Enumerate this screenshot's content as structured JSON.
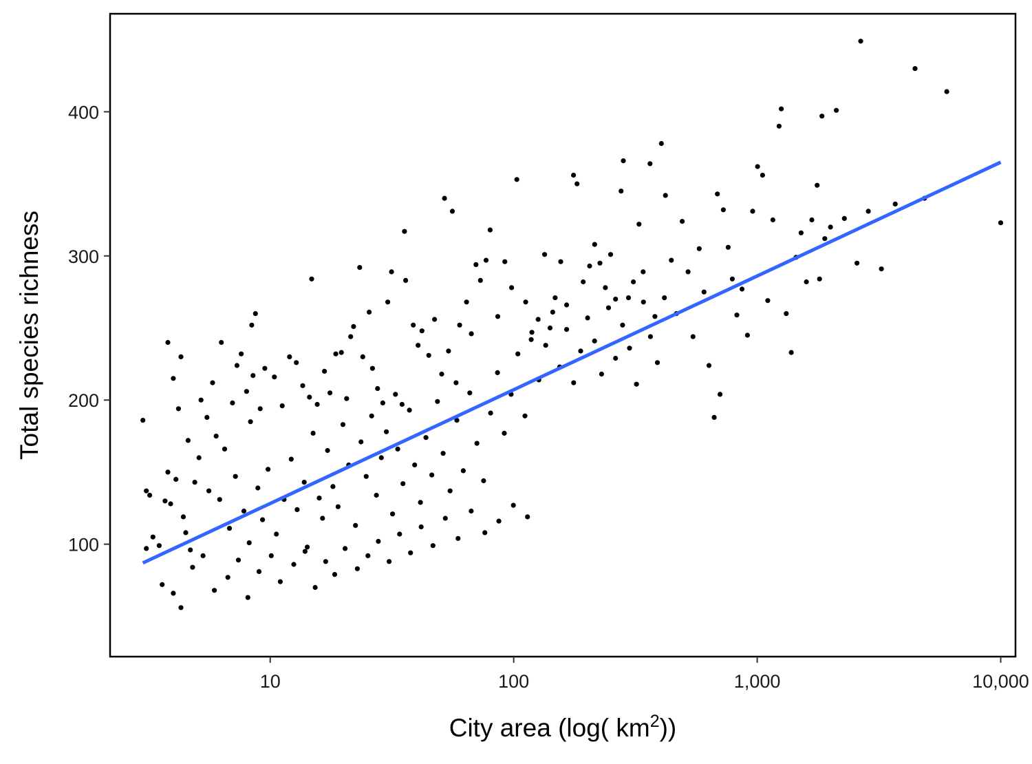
{
  "chart_data": {
    "type": "scatter",
    "xlabel": "City area (log( km",
    "xlabel_sup": "2",
    "xlabel_end": "))",
    "ylabel": "Total species richness",
    "x_scale": "log10",
    "xlim": [
      2.2,
      11500
    ],
    "ylim": [
      22,
      468
    ],
    "x_ticks": [
      10,
      100,
      1000,
      10000
    ],
    "x_tick_labels": [
      "10",
      "100",
      "1,000",
      "10,000"
    ],
    "y_ticks": [
      100,
      200,
      300,
      400
    ],
    "y_tick_labels": [
      "100",
      "200",
      "300",
      "400"
    ],
    "grid": false,
    "legend": "none",
    "trend_line": {
      "x": [
        3,
        10000
      ],
      "y": [
        87,
        365
      ],
      "color": "#3366ff"
    },
    "point_color": "#000000",
    "points": [
      [
        3.0,
        186
      ],
      [
        3.1,
        137
      ],
      [
        3.2,
        134
      ],
      [
        3.1,
        97
      ],
      [
        3.8,
        240
      ],
      [
        4.0,
        215
      ],
      [
        4.3,
        230
      ],
      [
        4.2,
        194
      ],
      [
        3.8,
        150
      ],
      [
        4.1,
        145
      ],
      [
        4.0,
        66
      ],
      [
        4.3,
        56
      ],
      [
        4.5,
        108
      ],
      [
        3.7,
        130
      ],
      [
        4.6,
        172
      ],
      [
        4.9,
        143
      ],
      [
        5.2,
        200
      ],
      [
        5.5,
        188
      ],
      [
        5.1,
        160
      ],
      [
        5.8,
        212
      ],
      [
        6.0,
        175
      ],
      [
        6.5,
        166
      ],
      [
        7.0,
        198
      ],
      [
        7.6,
        232
      ],
      [
        7.3,
        224
      ],
      [
        8.0,
        206
      ],
      [
        8.5,
        217
      ],
      [
        8.3,
        185
      ],
      [
        8.7,
        260
      ],
      [
        9.1,
        194
      ],
      [
        9.5,
        222
      ],
      [
        10.4,
        216
      ],
      [
        11.2,
        196
      ],
      [
        12.0,
        230
      ],
      [
        12.8,
        226
      ],
      [
        13.6,
        210
      ],
      [
        14.5,
        202
      ],
      [
        14.8,
        284
      ],
      [
        15.6,
        197
      ],
      [
        16.7,
        220
      ],
      [
        17.6,
        205
      ],
      [
        18.6,
        232
      ],
      [
        19.6,
        233
      ],
      [
        20.6,
        201
      ],
      [
        21.4,
        244
      ],
      [
        22.0,
        251
      ],
      [
        23.3,
        292
      ],
      [
        24.0,
        230
      ],
      [
        25.5,
        261
      ],
      [
        26.3,
        222
      ],
      [
        27.6,
        208
      ],
      [
        29.0,
        198
      ],
      [
        30.4,
        268
      ],
      [
        31.5,
        289
      ],
      [
        32.7,
        204
      ],
      [
        34.8,
        197
      ],
      [
        35.6,
        317
      ],
      [
        36.0,
        283
      ],
      [
        38.7,
        252
      ],
      [
        40.5,
        238
      ],
      [
        42.0,
        248
      ],
      [
        44.8,
        231
      ],
      [
        47.3,
        256
      ],
      [
        50.6,
        218
      ],
      [
        52.0,
        340
      ],
      [
        54.0,
        234
      ],
      [
        56.0,
        331
      ],
      [
        58.0,
        212
      ],
      [
        60.0,
        252
      ],
      [
        64.0,
        268
      ],
      [
        67.0,
        246
      ],
      [
        70.0,
        294
      ],
      [
        73.0,
        283
      ],
      [
        77.0,
        297
      ],
      [
        80.0,
        318
      ],
      [
        86.0,
        258
      ],
      [
        92.0,
        296
      ],
      [
        98.0,
        278
      ],
      [
        103.0,
        353
      ],
      [
        112.0,
        268
      ],
      [
        118.0,
        242
      ],
      [
        126.0,
        256
      ],
      [
        134.0,
        301
      ],
      [
        141.0,
        250
      ],
      [
        148.0,
        271
      ],
      [
        156.0,
        296
      ],
      [
        165.0,
        266
      ],
      [
        176.0,
        356
      ],
      [
        182.0,
        350
      ],
      [
        193.0,
        282
      ],
      [
        205.0,
        293
      ],
      [
        215.0,
        308
      ],
      [
        226.0,
        295
      ],
      [
        238.0,
        278
      ],
      [
        250.0,
        301
      ],
      [
        262.0,
        270
      ],
      [
        276.0,
        345
      ],
      [
        282.0,
        366
      ],
      [
        296.0,
        271
      ],
      [
        310.0,
        282
      ],
      [
        327.0,
        322
      ],
      [
        340.0,
        289
      ],
      [
        363.0,
        364
      ],
      [
        380.0,
        258
      ],
      [
        404.0,
        378
      ],
      [
        420.0,
        342
      ],
      [
        444.0,
        297
      ],
      [
        466.0,
        260
      ],
      [
        492.0,
        324
      ],
      [
        520.0,
        289
      ],
      [
        545.0,
        244
      ],
      [
        578.0,
        305
      ],
      [
        605.0,
        275
      ],
      [
        634.0,
        224
      ],
      [
        666.0,
        188
      ],
      [
        686.0,
        343
      ],
      [
        704.0,
        204
      ],
      [
        726.0,
        332
      ],
      [
        760.0,
        306
      ],
      [
        790.0,
        284
      ],
      [
        825.0,
        259
      ],
      [
        866.0,
        277
      ],
      [
        912.0,
        245
      ],
      [
        958.0,
        331
      ],
      [
        1003.0,
        362
      ],
      [
        1052.0,
        356
      ],
      [
        1105.0,
        269
      ],
      [
        1160.0,
        325
      ],
      [
        1230.0,
        390
      ],
      [
        1256.0,
        402
      ],
      [
        1316.0,
        260
      ],
      [
        1380.0,
        233
      ],
      [
        1444.0,
        299
      ],
      [
        1515.0,
        316
      ],
      [
        1592.0,
        282
      ],
      [
        1676.0,
        325
      ],
      [
        1762.0,
        349
      ],
      [
        1803.0,
        284
      ],
      [
        1845.0,
        397
      ],
      [
        1894.0,
        312
      ],
      [
        2000.0,
        320
      ],
      [
        2113.0,
        401
      ],
      [
        2280.0,
        326
      ],
      [
        2568.0,
        295
      ],
      [
        2660.0,
        449
      ],
      [
        2860.0,
        331
      ],
      [
        3236.0,
        291
      ],
      [
        3687.0,
        336
      ],
      [
        4448.0,
        430
      ],
      [
        4865.0,
        340
      ],
      [
        6005.0,
        414
      ],
      [
        9998.0,
        323
      ],
      [
        3.3,
        105
      ],
      [
        3.5,
        99
      ],
      [
        3.9,
        128
      ],
      [
        4.4,
        119
      ],
      [
        4.7,
        96
      ],
      [
        5.3,
        92
      ],
      [
        5.6,
        137
      ],
      [
        6.2,
        131
      ],
      [
        6.8,
        111
      ],
      [
        7.2,
        147
      ],
      [
        7.8,
        123
      ],
      [
        8.2,
        101
      ],
      [
        8.9,
        139
      ],
      [
        9.3,
        117
      ],
      [
        9.8,
        152
      ],
      [
        10.6,
        107
      ],
      [
        11.4,
        131
      ],
      [
        12.2,
        159
      ],
      [
        12.9,
        124
      ],
      [
        13.8,
        143
      ],
      [
        14.2,
        98
      ],
      [
        15.0,
        177
      ],
      [
        15.9,
        132
      ],
      [
        16.4,
        118
      ],
      [
        17.2,
        165
      ],
      [
        18.1,
        140
      ],
      [
        19.0,
        126
      ],
      [
        19.9,
        183
      ],
      [
        21.0,
        155
      ],
      [
        22.4,
        113
      ],
      [
        23.6,
        171
      ],
      [
        24.8,
        147
      ],
      [
        26.1,
        189
      ],
      [
        27.3,
        134
      ],
      [
        28.6,
        160
      ],
      [
        30.0,
        178
      ],
      [
        31.8,
        121
      ],
      [
        33.4,
        166
      ],
      [
        35.1,
        142
      ],
      [
        37.3,
        193
      ],
      [
        39.2,
        155
      ],
      [
        41.4,
        129
      ],
      [
        43.6,
        174
      ],
      [
        46.1,
        148
      ],
      [
        48.6,
        199
      ],
      [
        51.3,
        163
      ],
      [
        54.8,
        137
      ],
      [
        58.4,
        186
      ],
      [
        62.1,
        151
      ],
      [
        66.0,
        205
      ],
      [
        70.6,
        170
      ],
      [
        75.2,
        144
      ],
      [
        80.4,
        191
      ],
      [
        85.8,
        219
      ],
      [
        91.5,
        177
      ],
      [
        97.6,
        204
      ],
      [
        104.0,
        232
      ],
      [
        111.2,
        189
      ],
      [
        118.8,
        247
      ],
      [
        126.8,
        214
      ],
      [
        135.4,
        238
      ],
      [
        144.6,
        261
      ],
      [
        154.5,
        223
      ],
      [
        165.0,
        249
      ],
      [
        176.3,
        212
      ],
      [
        188.4,
        234
      ],
      [
        201.2,
        257
      ],
      [
        214.9,
        241
      ],
      [
        229.6,
        218
      ],
      [
        245.2,
        264
      ],
      [
        262.0,
        229
      ],
      [
        279.9,
        252
      ],
      [
        298.9,
        236
      ],
      [
        319.3,
        211
      ],
      [
        341.1,
        268
      ],
      [
        364.3,
        244
      ],
      [
        389.2,
        226
      ],
      [
        415.8,
        271
      ],
      [
        3.6,
        72
      ],
      [
        4.8,
        84
      ],
      [
        5.9,
        68
      ],
      [
        6.7,
        77
      ],
      [
        7.4,
        89
      ],
      [
        8.1,
        63
      ],
      [
        9.0,
        81
      ],
      [
        10.1,
        92
      ],
      [
        11.0,
        74
      ],
      [
        12.5,
        86
      ],
      [
        13.9,
        95
      ],
      [
        15.3,
        70
      ],
      [
        16.9,
        88
      ],
      [
        18.4,
        79
      ],
      [
        20.3,
        97
      ],
      [
        22.8,
        83
      ],
      [
        25.2,
        92
      ],
      [
        27.8,
        102
      ],
      [
        30.8,
        88
      ],
      [
        34.0,
        107
      ],
      [
        37.7,
        94
      ],
      [
        41.7,
        112
      ],
      [
        46.6,
        99
      ],
      [
        52.4,
        118
      ],
      [
        59.1,
        104
      ],
      [
        66.9,
        123
      ],
      [
        76.1,
        108
      ],
      [
        86.9,
        116
      ],
      [
        99.7,
        127
      ],
      [
        113.9,
        119
      ],
      [
        6.3,
        240
      ],
      [
        8.4,
        252
      ]
    ]
  }
}
